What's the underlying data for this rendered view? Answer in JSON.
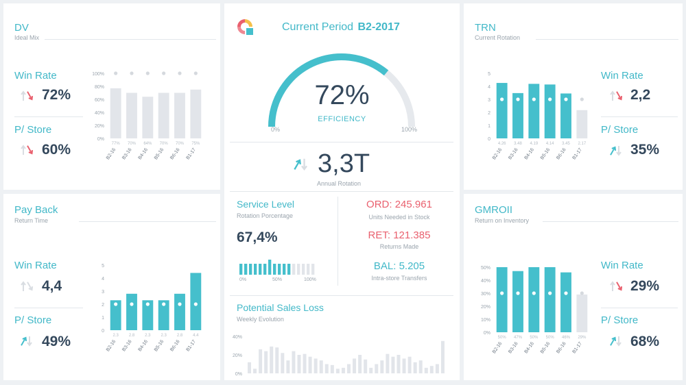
{
  "colors": {
    "teal": "#45bfcc",
    "gray_bar": "#e2e5ea",
    "red": "#e9606e",
    "navy": "#34485c",
    "muted": "#9aa4ad"
  },
  "dv": {
    "title": "DV",
    "subtitle": "Ideal Mix",
    "kpi1": {
      "label": "Win Rate",
      "value": "72%",
      "trend": "down"
    },
    "kpi2": {
      "label": "P/ Store",
      "value": "60%",
      "trend": "down"
    }
  },
  "trn": {
    "title": "TRN",
    "subtitle": "Current Rotation",
    "kpi1": {
      "label": "Win Rate",
      "value": "2,2",
      "trend": "down"
    },
    "kpi2": {
      "label": "P/ Store",
      "value": "35%",
      "trend": "up"
    }
  },
  "payback": {
    "title": "Pay Back",
    "subtitle": "Return Time",
    "kpi1": {
      "label": "Win Rate",
      "value": "4,4",
      "trend": "neutral"
    },
    "kpi2": {
      "label": "P/ Store",
      "value": "49%",
      "trend": "up"
    }
  },
  "gmroii": {
    "title": "GMROII",
    "subtitle": "Return on Inventory",
    "kpi1": {
      "label": "Win Rate",
      "value": "29%",
      "trend": "down"
    },
    "kpi2": {
      "label": "P/ Store",
      "value": "68%",
      "trend": "up"
    }
  },
  "center": {
    "period_label": "Current Period",
    "period_value": "B2-2017",
    "efficiency": {
      "value": "72%",
      "label": "EFFICIENCY",
      "min_label": "0%",
      "max_label": "100%",
      "fraction": 0.72
    },
    "rotation": {
      "value": "3,3T",
      "label": "Annual Rotation",
      "trend": "up"
    },
    "service": {
      "title": "Service Level",
      "subtitle": "Rotation Porcentage",
      "value": "67,4%",
      "fraction": 0.674,
      "scale": [
        "0%",
        "50%",
        "100%"
      ]
    },
    "ord": {
      "key": "ORD:",
      "value": "245.961",
      "desc": "Units Needed in Stock"
    },
    "ret": {
      "key": "RET:",
      "value": "121.385",
      "desc": "Returns Made"
    },
    "bal": {
      "key": "BAL:",
      "value": "5.205",
      "desc": "Intra-store Transfers"
    },
    "sales_loss": {
      "title": "Potential Sales Loss",
      "subtitle": "Weekly Evolution"
    }
  },
  "chart_data": [
    {
      "id": "dv",
      "type": "bar",
      "categories": [
        "B2-16",
        "B3-16",
        "B4-16",
        "B5-16",
        "B6-16",
        "B1-17"
      ],
      "values": [
        77,
        70,
        64,
        70,
        70,
        75
      ],
      "value_labels": [
        "77%",
        "70%",
        "64%",
        "70%",
        "70%",
        "75%"
      ],
      "target": [
        100,
        100,
        100,
        100,
        100,
        100
      ],
      "y_ticks": [
        "0%",
        "20%",
        "40%",
        "60%",
        "80%",
        "100%"
      ],
      "ylim": [
        0,
        100
      ],
      "highlight": [
        false,
        false,
        false,
        false,
        false,
        false
      ]
    },
    {
      "id": "trn",
      "type": "bar",
      "categories": [
        "B2-16",
        "B3-16",
        "B4-16",
        "B5-16",
        "B6-16",
        "B1-17"
      ],
      "values": [
        4.26,
        3.48,
        4.19,
        4.14,
        3.45,
        2.17
      ],
      "value_labels": [
        "4.26",
        "3.48",
        "4.19",
        "4.14",
        "3.45",
        "2.17"
      ],
      "target": [
        3,
        3,
        3,
        3,
        3,
        3
      ],
      "y_ticks": [
        "0",
        "1",
        "2",
        "3",
        "4",
        "5"
      ],
      "ylim": [
        0,
        5
      ],
      "highlight": [
        true,
        true,
        true,
        true,
        true,
        false
      ]
    },
    {
      "id": "payback",
      "type": "bar",
      "categories": [
        "B2-16",
        "B3-16",
        "B4-16",
        "B5-16",
        "B6-16",
        "B1-17"
      ],
      "values": [
        2.3,
        2.8,
        2.3,
        2.3,
        2.8,
        4.4
      ],
      "value_labels": [
        "2.3",
        "2.8",
        "2.3",
        "2.3",
        "2.8",
        "4.4"
      ],
      "target": [
        2,
        2,
        2,
        2,
        2,
        2
      ],
      "y_ticks": [
        "0",
        "1",
        "2",
        "3",
        "4",
        "5"
      ],
      "ylim": [
        0,
        5
      ],
      "highlight": [
        true,
        true,
        true,
        true,
        true,
        true
      ]
    },
    {
      "id": "gmroii",
      "type": "bar",
      "categories": [
        "B2-16",
        "B3-16",
        "B4-16",
        "B5-16",
        "B6-16",
        "B1-17"
      ],
      "values": [
        50,
        47,
        50,
        50,
        46,
        29
      ],
      "value_labels": [
        "50%",
        "47%",
        "50%",
        "50%",
        "46%",
        "29%"
      ],
      "target": [
        30,
        30,
        30,
        30,
        30,
        30
      ],
      "y_ticks": [
        "0%",
        "10%",
        "20%",
        "30%",
        "40%",
        "50%"
      ],
      "ylim": [
        0,
        50
      ],
      "highlight": [
        true,
        true,
        true,
        true,
        true,
        false
      ]
    },
    {
      "id": "service_level",
      "type": "bar",
      "values": [
        1,
        1,
        1,
        1,
        1,
        1,
        1,
        1,
        1,
        1,
        1,
        1,
        1,
        1,
        1,
        1
      ],
      "highlight": [
        true,
        true,
        true,
        true,
        true,
        true,
        true,
        true,
        true,
        true,
        true,
        false,
        false,
        false,
        false,
        false
      ]
    },
    {
      "id": "sales_loss",
      "type": "bar",
      "y_ticks": [
        "0%",
        "20%",
        "40%"
      ],
      "ylim": [
        0,
        40
      ],
      "values": [
        12,
        5,
        26,
        24,
        29,
        28,
        22,
        14,
        24,
        20,
        21,
        18,
        16,
        14,
        10,
        9,
        5,
        6,
        10,
        16,
        20,
        15,
        6,
        10,
        14,
        21,
        18,
        20,
        16,
        18,
        12,
        14,
        6,
        8,
        10,
        35
      ]
    }
  ]
}
